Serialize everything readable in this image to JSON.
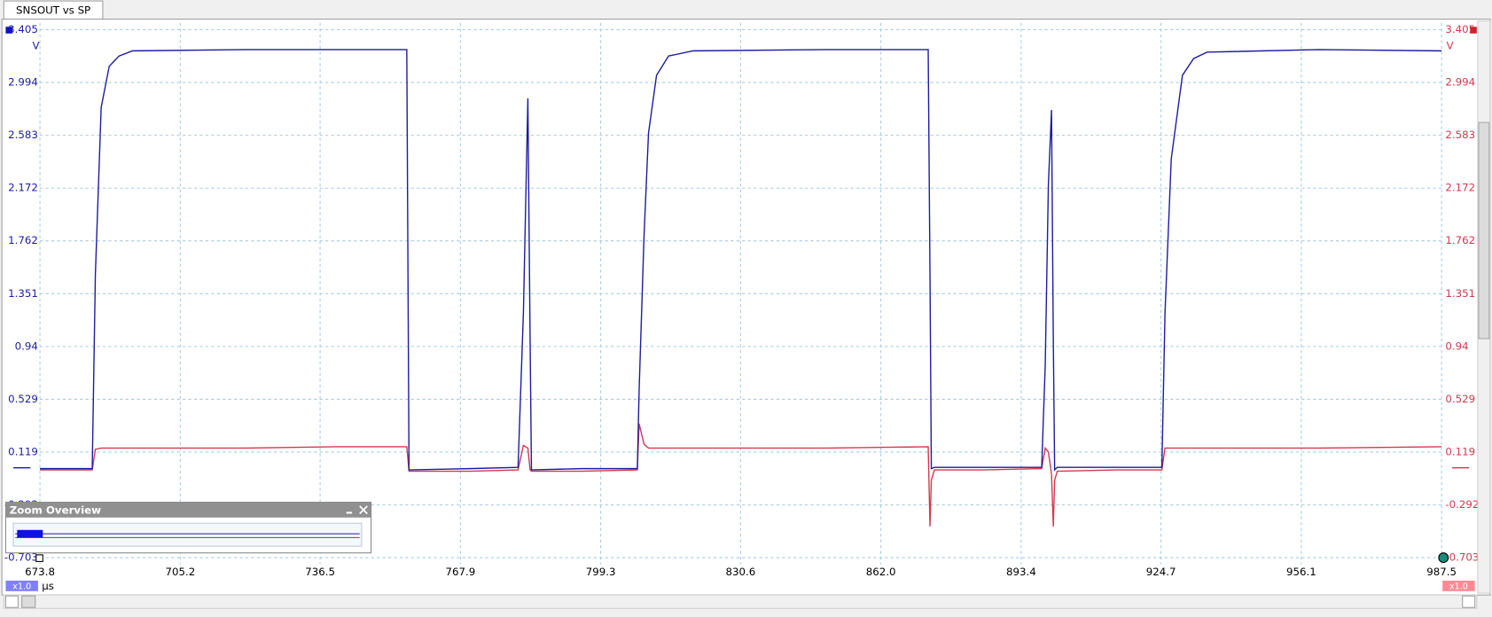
{
  "tab": "SNSOUT vs SP",
  "zoom_overview": {
    "title": "Zoom Overview"
  },
  "chart_data": {
    "type": "line",
    "x_unit": "μs",
    "y_unit": "V",
    "y2_unit": "V",
    "x_scale": "x1.0",
    "y2_scale": "x1.0",
    "xlim": [
      673.8,
      987.5
    ],
    "xticks": [
      673.8,
      705.2,
      736.5,
      767.9,
      799.3,
      830.6,
      {
        "value": 862,
        "label": "862.0"
      },
      893.4,
      924.7,
      956.1,
      987.5
    ],
    "ylim": [
      -0.703,
      3.405
    ],
    "yticks": [
      3.405,
      2.994,
      2.583,
      2.172,
      1.762,
      1.351,
      0.94,
      0.529,
      0.119,
      -0.292,
      -0.703
    ],
    "y2lim": [
      -0.703,
      3.405
    ],
    "y2ticks": [
      3.405,
      2.994,
      2.583,
      2.172,
      1.762,
      1.351,
      0.94,
      0.529,
      0.119,
      -0.292,
      -0.703
    ],
    "grid": true,
    "x": [
      673.8,
      685.5,
      686.2,
      687.5,
      689.3,
      691.5,
      694.5,
      720,
      740,
      755.9,
      756.4,
      770,
      780.8,
      782.0,
      783.0,
      783.5,
      783.8,
      795,
      807.5,
      807.9,
      809.0,
      810.0,
      811.8,
      814.5,
      820,
      850,
      872.6,
      873.0,
      873.3,
      874.0,
      885,
      898.0,
      898.8,
      899.5,
      900.2,
      900.6,
      900.9,
      901.5,
      915,
      924.9,
      925.6,
      927.0,
      929.5,
      932,
      935,
      960,
      987.5
    ],
    "series": [
      {
        "color": "#1c1ca0",
        "values": [
          -0.01,
          -0.01,
          1.5,
          2.8,
          3.12,
          3.2,
          3.24,
          3.25,
          3.25,
          3.25,
          -0.02,
          -0.01,
          0,
          1.2,
          2.87,
          1.0,
          -0.02,
          -0.01,
          -0.01,
          0.6,
          1.8,
          2.6,
          3.05,
          3.2,
          3.24,
          3.25,
          3.25,
          1.5,
          -0.01,
          0,
          0,
          0,
          0.8,
          2.2,
          2.78,
          1.0,
          -0.02,
          0,
          0,
          0,
          1.2,
          2.4,
          3.05,
          3.18,
          3.23,
          3.25,
          3.24
        ]
      },
      {
        "color": "#d23a4e",
        "axis": "y2",
        "values": [
          -0.02,
          -0.02,
          0.14,
          0.15,
          0.15,
          0.15,
          0.15,
          0.15,
          0.16,
          0.16,
          -0.03,
          -0.03,
          -0.02,
          0.17,
          0.15,
          -0.02,
          -0.03,
          -0.03,
          -0.02,
          0.34,
          0.18,
          0.15,
          0.15,
          0.15,
          0.15,
          0.15,
          0.16,
          -0.46,
          -0.1,
          -0.02,
          -0.02,
          -0.01,
          0.15,
          0.12,
          -0.05,
          -0.46,
          -0.1,
          -0.03,
          -0.02,
          -0.02,
          0.15,
          0.15,
          0.15,
          0.15,
          0.15,
          0.15,
          0.16
        ]
      }
    ]
  }
}
